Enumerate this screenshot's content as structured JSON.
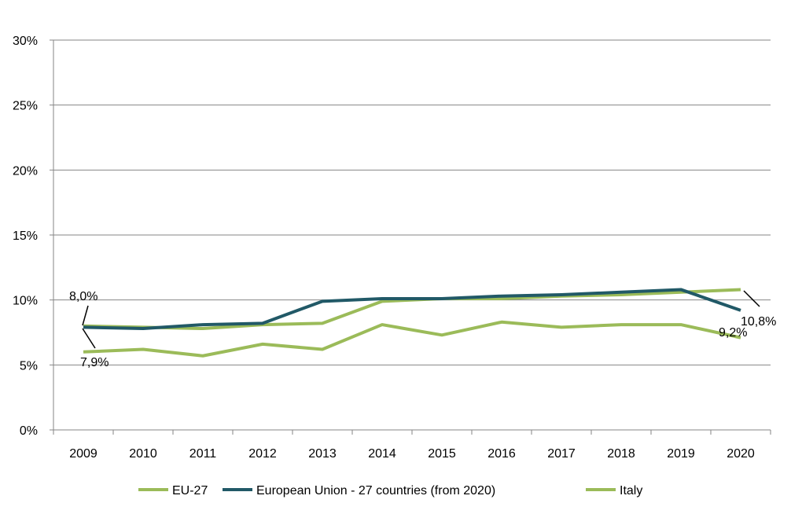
{
  "chart_data": {
    "type": "line",
    "title": "",
    "xlabel": "",
    "ylabel": "",
    "categories": [
      "2009",
      "2010",
      "2011",
      "2012",
      "2013",
      "2014",
      "2015",
      "2016",
      "2017",
      "2018",
      "2019",
      "2020"
    ],
    "ylim": [
      0,
      30
    ],
    "yticks": [
      0,
      5,
      10,
      15,
      20,
      25,
      30
    ],
    "ytick_labels": [
      "0%",
      "5%",
      "10%",
      "15%",
      "20%",
      "25%",
      "30%"
    ],
    "grid": true,
    "legend_position": "bottom",
    "series": [
      {
        "name": "EU-27",
        "color": "#9bbb59",
        "values": [
          8.0,
          7.9,
          7.8,
          8.1,
          8.2,
          9.9,
          10.1,
          10.1,
          10.3,
          10.4,
          10.6,
          10.8
        ]
      },
      {
        "name": "European Union - 27 countries (from 2020)",
        "color": "#215967",
        "values": [
          7.9,
          7.8,
          8.1,
          8.2,
          9.9,
          10.1,
          10.1,
          10.3,
          10.4,
          10.6,
          10.8,
          9.2
        ]
      },
      {
        "name": "Italy",
        "color": "#9bbb59",
        "values": [
          6.0,
          6.2,
          5.7,
          6.6,
          6.2,
          8.1,
          7.3,
          8.3,
          7.9,
          8.1,
          8.1,
          7.1
        ]
      }
    ],
    "annotations": [
      {
        "text": "8,0%",
        "series": 0,
        "index": 0
      },
      {
        "text": "7,9%",
        "series": 1,
        "index": 0
      },
      {
        "text": "10,8%",
        "series": 0,
        "index": 11
      },
      {
        "text": "9,2%",
        "series": 1,
        "index": 11
      }
    ]
  }
}
